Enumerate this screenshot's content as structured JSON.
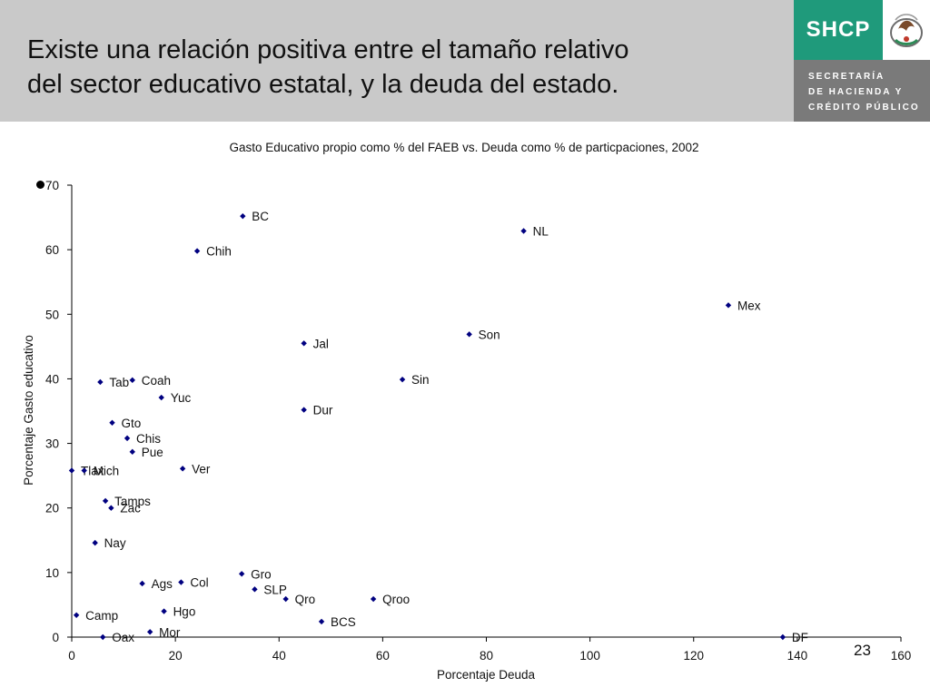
{
  "header": {
    "title_line1": "Existe una relación positiva entre el tamaño relativo",
    "title_line2": "del sector educativo estatal, y la deuda del estado."
  },
  "logo": {
    "acronym": "SHCP",
    "line1": "SECRETARÍA",
    "line2": "DE HACIENDA Y",
    "line3": "CRÉDITO PÚBLICO"
  },
  "page_number": "23",
  "colors": {
    "header_bg": "#c9c9c9",
    "logo_green": "#1f9a7b",
    "marker": "#000080"
  },
  "chart_data": {
    "type": "scatter",
    "title": "Gasto Educativo propio como % del FAEB vs. Deuda como % de particpaciones, 2002",
    "xlabel": "Porcentaje Deuda",
    "ylabel": "Porcentaje Gasto educativo",
    "xlim": [
      0,
      160
    ],
    "ylim": [
      0,
      70
    ],
    "xticks": [
      0,
      20,
      40,
      60,
      80,
      100,
      120,
      140,
      160
    ],
    "yticks": [
      0,
      10,
      20,
      30,
      40,
      50,
      60,
      70
    ],
    "grid": false,
    "points": [
      {
        "label": "BC",
        "x": 33.0,
        "y": 65.2
      },
      {
        "label": "NL",
        "x": 87.2,
        "y": 62.9
      },
      {
        "label": "Chih",
        "x": 24.2,
        "y": 59.8
      },
      {
        "label": "Mex",
        "x": 126.7,
        "y": 51.4
      },
      {
        "label": "Son",
        "x": 76.7,
        "y": 46.9
      },
      {
        "label": "Jal",
        "x": 44.8,
        "y": 45.5
      },
      {
        "label": "Sin",
        "x": 63.8,
        "y": 39.9
      },
      {
        "label": "Coah",
        "x": 11.7,
        "y": 39.8
      },
      {
        "label": "Tab",
        "x": 5.5,
        "y": 39.5
      },
      {
        "label": "Yuc",
        "x": 17.3,
        "y": 37.1
      },
      {
        "label": "Dur",
        "x": 44.8,
        "y": 35.2
      },
      {
        "label": "Gto",
        "x": 7.8,
        "y": 33.2
      },
      {
        "label": "Chis",
        "x": 10.7,
        "y": 30.8
      },
      {
        "label": "Pue",
        "x": 11.7,
        "y": 28.7
      },
      {
        "label": "Ver",
        "x": 21.4,
        "y": 26.1
      },
      {
        "label": "Tlax",
        "x": 0.0,
        "y": 25.8
      },
      {
        "label": "Mich",
        "x": 2.4,
        "y": 25.8
      },
      {
        "label": "Tamps",
        "x": 6.5,
        "y": 21.1
      },
      {
        "label": "Zac",
        "x": 7.6,
        "y": 20.0
      },
      {
        "label": "Nay",
        "x": 4.5,
        "y": 14.6
      },
      {
        "label": "Gro",
        "x": 32.8,
        "y": 9.8
      },
      {
        "label": "Col",
        "x": 21.1,
        "y": 8.5
      },
      {
        "label": "Ags",
        "x": 13.6,
        "y": 8.3
      },
      {
        "label": "SLP",
        "x": 35.3,
        "y": 7.4
      },
      {
        "label": "Qro",
        "x": 41.3,
        "y": 5.9
      },
      {
        "label": "Qroo",
        "x": 58.2,
        "y": 5.9
      },
      {
        "label": "Hgo",
        "x": 17.8,
        "y": 4.0
      },
      {
        "label": "Camp",
        "x": 0.9,
        "y": 3.4
      },
      {
        "label": "BCS",
        "x": 48.2,
        "y": 2.4
      },
      {
        "label": "Mor",
        "x": 15.1,
        "y": 0.8
      },
      {
        "label": "Oax",
        "x": 6.0,
        "y": 0.0
      },
      {
        "label": "DF",
        "x": 137.2,
        "y": 0.0
      }
    ]
  }
}
